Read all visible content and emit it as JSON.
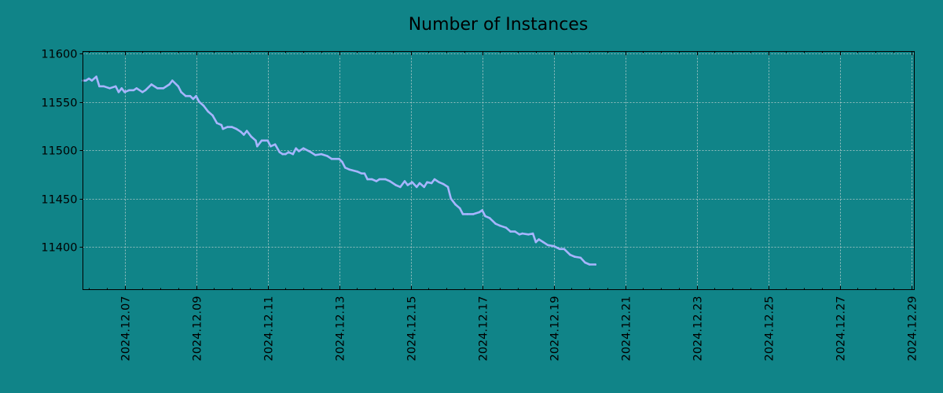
{
  "chart_data": {
    "type": "line",
    "title": "Number of Instances",
    "xlabel": "",
    "ylabel": "",
    "grid": true,
    "legend": "none",
    "x_range": [
      "2024.12.05 20:00",
      "2024.12.29 02:00"
    ],
    "ylim": [
      11356,
      11602
    ],
    "y_ticks": [
      11400,
      11450,
      11500,
      11550,
      11600
    ],
    "x_ticks": [
      "2024.12.07",
      "2024.12.09",
      "2024.12.11",
      "2024.12.13",
      "2024.12.15",
      "2024.12.17",
      "2024.12.19",
      "2024.12.21",
      "2024.12.23",
      "2024.12.25",
      "2024.12.27",
      "2024.12.29"
    ],
    "colors": {
      "background": "#108488",
      "line": "#a7b5ff",
      "axes": "#000000",
      "grid": "#d8dcdc"
    },
    "series": [
      {
        "points": [
          [
            "2024.12.05 20:00",
            11572
          ],
          [
            "2024.12.05 22:00",
            11572
          ],
          [
            "2024.12.06 00:00",
            11574
          ],
          [
            "2024.12.06 02:00",
            11572
          ],
          [
            "2024.12.06 05:00",
            11576
          ],
          [
            "2024.12.06 07:00",
            11566
          ],
          [
            "2024.12.06 10:00",
            11566
          ],
          [
            "2024.12.06 14:00",
            11564
          ],
          [
            "2024.12.06 18:00",
            11566
          ],
          [
            "2024.12.06 20:00",
            11560
          ],
          [
            "2024.12.06 22:00",
            11564
          ],
          [
            "2024.12.07 00:00",
            11560
          ],
          [
            "2024.12.07 03:00",
            11562
          ],
          [
            "2024.12.07 06:00",
            11562
          ],
          [
            "2024.12.07 08:00",
            11564
          ],
          [
            "2024.12.07 12:00",
            11560
          ],
          [
            "2024.12.07 14:00",
            11562
          ],
          [
            "2024.12.07 18:00",
            11568
          ],
          [
            "2024.12.07 22:00",
            11564
          ],
          [
            "2024.12.08 02:00",
            11564
          ],
          [
            "2024.12.08 06:00",
            11568
          ],
          [
            "2024.12.08 08:00",
            11572
          ],
          [
            "2024.12.08 12:00",
            11566
          ],
          [
            "2024.12.08 14:00",
            11560
          ],
          [
            "2024.12.08 17:00",
            11556
          ],
          [
            "2024.12.08 20:00",
            11556
          ],
          [
            "2024.12.08 22:00",
            11553
          ],
          [
            "2024.12.09 00:00",
            11556
          ],
          [
            "2024.12.09 02:00",
            11550
          ],
          [
            "2024.12.09 05:00",
            11546
          ],
          [
            "2024.12.09 08:00",
            11540
          ],
          [
            "2024.12.09 11:00",
            11536
          ],
          [
            "2024.12.09 14:00",
            11528
          ],
          [
            "2024.12.09 17:00",
            11526
          ],
          [
            "2024.12.09 18:00",
            11522
          ],
          [
            "2024.12.09 21:00",
            11524
          ],
          [
            "2024.12.10 00:00",
            11524
          ],
          [
            "2024.12.10 03:00",
            11522
          ],
          [
            "2024.12.10 06:00",
            11519
          ],
          [
            "2024.12.10 08:00",
            11516
          ],
          [
            "2024.12.10 10:00",
            11520
          ],
          [
            "2024.12.10 13:00",
            11514
          ],
          [
            "2024.12.10 16:00",
            11510
          ],
          [
            "2024.12.10 17:00",
            11504
          ],
          [
            "2024.12.10 20:00",
            11510
          ],
          [
            "2024.12.11 00:00",
            11510
          ],
          [
            "2024.12.11 02:00",
            11504
          ],
          [
            "2024.12.11 05:00",
            11506
          ],
          [
            "2024.12.11 08:00",
            11498
          ],
          [
            "2024.12.11 10:00",
            11496
          ],
          [
            "2024.12.11 12:00",
            11496
          ],
          [
            "2024.12.11 14:00",
            11498
          ],
          [
            "2024.12.11 17:00",
            11496
          ],
          [
            "2024.12.11 19:00",
            11502
          ],
          [
            "2024.12.11 21:00",
            11499
          ],
          [
            "2024.12.12 00:00",
            11502
          ],
          [
            "2024.12.12 05:00",
            11498
          ],
          [
            "2024.12.12 08:00",
            11495
          ],
          [
            "2024.12.12 12:00",
            11496
          ],
          [
            "2024.12.12 16:00",
            11494
          ],
          [
            "2024.12.12 19:00",
            11491
          ],
          [
            "2024.12.13 00:00",
            11491
          ],
          [
            "2024.12.13 02:00",
            11488
          ],
          [
            "2024.12.13 04:00",
            11482
          ],
          [
            "2024.12.13 07:00",
            11480
          ],
          [
            "2024.12.13 12:00",
            11478
          ],
          [
            "2024.12.13 15:00",
            11476
          ],
          [
            "2024.12.13 17:00",
            11476
          ],
          [
            "2024.12.13 19:00",
            11470
          ],
          [
            "2024.12.13 22:00",
            11470
          ],
          [
            "2024.12.14 01:00",
            11468
          ],
          [
            "2024.12.14 03:00",
            11470
          ],
          [
            "2024.12.14 07:00",
            11470
          ],
          [
            "2024.12.14 10:00",
            11468
          ],
          [
            "2024.12.14 14:00",
            11464
          ],
          [
            "2024.12.14 17:00",
            11462
          ],
          [
            "2024.12.14 20:00",
            11468
          ],
          [
            "2024.12.14 22:00",
            11464
          ],
          [
            "2024.12.15 01:00",
            11467
          ],
          [
            "2024.12.15 04:00",
            11462
          ],
          [
            "2024.12.15 06:00",
            11466
          ],
          [
            "2024.12.15 09:00",
            11462
          ],
          [
            "2024.12.15 11:00",
            11467
          ],
          [
            "2024.12.15 14:00",
            11466
          ],
          [
            "2024.12.15 16:00",
            11470
          ],
          [
            "2024.12.15 19:00",
            11467
          ],
          [
            "2024.12.15 22:00",
            11465
          ],
          [
            "2024.12.16 01:00",
            11462
          ],
          [
            "2024.12.16 03:00",
            11450
          ],
          [
            "2024.12.16 06:00",
            11444
          ],
          [
            "2024.12.16 09:00",
            11440
          ],
          [
            "2024.12.16 11:00",
            11434
          ],
          [
            "2024.12.16 14:00",
            11434
          ],
          [
            "2024.12.16 18:00",
            11434
          ],
          [
            "2024.12.16 22:00",
            11436
          ],
          [
            "2024.12.17 00:00",
            11438
          ],
          [
            "2024.12.17 02:00",
            11432
          ],
          [
            "2024.12.17 05:00",
            11430
          ],
          [
            "2024.12.17 09:00",
            11424
          ],
          [
            "2024.12.17 12:00",
            11422
          ],
          [
            "2024.12.17 16:00",
            11420
          ],
          [
            "2024.12.17 19:00",
            11416
          ],
          [
            "2024.12.17 22:00",
            11416
          ],
          [
            "2024.12.18 01:00",
            11413
          ],
          [
            "2024.12.18 03:00",
            11414
          ],
          [
            "2024.12.18 07:00",
            11413
          ],
          [
            "2024.12.18 10:00",
            11414
          ],
          [
            "2024.12.18 12:00",
            11405
          ],
          [
            "2024.12.18 14:00",
            11408
          ],
          [
            "2024.12.18 17:00",
            11405
          ],
          [
            "2024.12.18 20:00",
            11402
          ],
          [
            "2024.12.19 00:00",
            11401
          ],
          [
            "2024.12.19 04:00",
            11398
          ],
          [
            "2024.12.19 07:00",
            11398
          ],
          [
            "2024.12.19 11:00",
            11392
          ],
          [
            "2024.12.19 14:00",
            11390
          ],
          [
            "2024.12.19 18:00",
            11389
          ],
          [
            "2024.12.19 21:00",
            11384
          ],
          [
            "2024.12.20 00:00",
            11382
          ],
          [
            "2024.12.20 04:00",
            11382
          ]
        ]
      }
    ]
  }
}
